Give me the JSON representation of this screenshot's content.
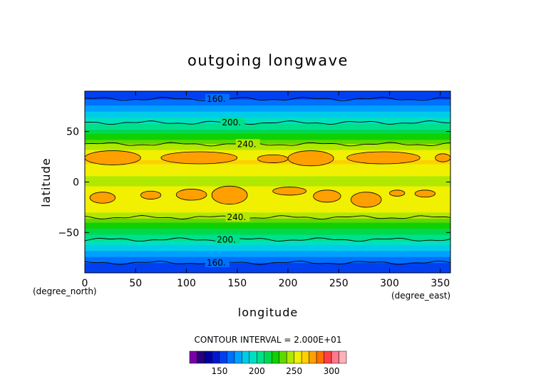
{
  "chart_data": {
    "type": "heatmap",
    "title": "outgoing longwave",
    "xlabel": "longitude",
    "ylabel": "latitude",
    "x_unit": "(degree_east)",
    "y_unit": "(degree_north)",
    "xlim": [
      0,
      360
    ],
    "ylim": [
      -90,
      90
    ],
    "x_ticks": [
      0,
      50,
      100,
      150,
      200,
      250,
      300,
      350
    ],
    "y_ticks": [
      -50,
      0,
      50
    ],
    "contour_interval_text": "CONTOUR INTERVAL = 2.000E+01",
    "contour_levels": [
      160,
      200,
      240
    ],
    "contour_labels": [
      "160.",
      "200.",
      "240."
    ],
    "colorbar": {
      "min": 110,
      "max": 320,
      "tick_values": [
        150,
        200,
        250,
        300
      ],
      "colors": [
        "#7a00a8",
        "#2a007a",
        "#0000a0",
        "#0018d0",
        "#0040f0",
        "#0070ff",
        "#00a0ff",
        "#00cce8",
        "#00e0c0",
        "#00e08c",
        "#00d850",
        "#10d000",
        "#60d800",
        "#b0e800",
        "#f0f000",
        "#ffd000",
        "#ffa000",
        "#ff7000",
        "#ff4040",
        "#ff7890",
        "#ffb0b8"
      ]
    },
    "zonal_profile": {
      "latitude": [
        -90,
        -80,
        -70,
        -60,
        -50,
        -40,
        -30,
        -20,
        -10,
        0,
        10,
        20,
        30,
        40,
        50,
        60,
        70,
        80,
        90
      ],
      "olr": [
        150,
        160,
        178,
        195,
        212,
        230,
        250,
        260,
        255,
        246,
        252,
        262,
        252,
        236,
        215,
        198,
        178,
        163,
        150
      ]
    }
  }
}
